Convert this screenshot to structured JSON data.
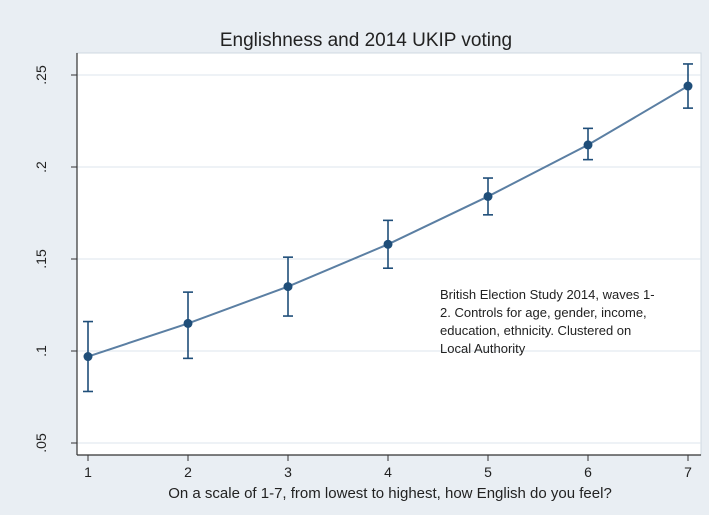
{
  "chart_data": {
    "type": "line",
    "title": "Englishness and 2014 UKIP voting",
    "xlabel": "On a scale of 1-7, from lowest to highest, how English do you feel?",
    "ylabel": "",
    "x": [
      1,
      2,
      3,
      4,
      5,
      6,
      7
    ],
    "xlim": [
      1,
      7
    ],
    "ylim": [
      0.05,
      0.25
    ],
    "x_ticks": [
      "1",
      "2",
      "3",
      "4",
      "5",
      "6",
      "7"
    ],
    "y_ticks": [
      {
        "value": 0.05,
        "label": ".05"
      },
      {
        "value": 0.1,
        "label": ".1"
      },
      {
        "value": 0.15,
        "label": ".15"
      },
      {
        "value": 0.2,
        "label": ".2"
      },
      {
        "value": 0.25,
        "label": ".25"
      }
    ],
    "series": [
      {
        "values": [
          0.097,
          0.115,
          0.135,
          0.158,
          0.184,
          0.212,
          0.244
        ],
        "ci_low": [
          0.078,
          0.096,
          0.119,
          0.145,
          0.174,
          0.204,
          0.232
        ],
        "ci_high": [
          0.116,
          0.132,
          0.151,
          0.171,
          0.194,
          0.221,
          0.256
        ]
      }
    ],
    "grid": true,
    "annotation": "British Election Study 2014, waves 1-2. Controls for age, gender, income, education, ethnicity. Clustered on Local Authority",
    "colors": {
      "background": "#e9eef3",
      "plot_background": "#ffffff",
      "series": "#1f4e79",
      "line": "#5b7fa3",
      "grid": "#dde5ec",
      "axis": "#333333",
      "text": "#222222"
    }
  }
}
